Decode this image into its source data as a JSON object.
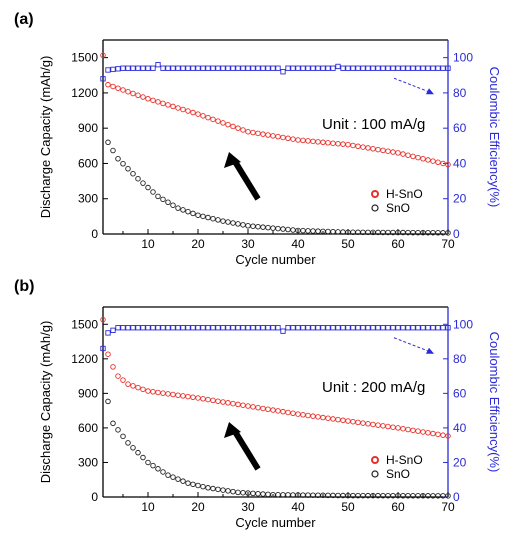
{
  "chart_data": [
    {
      "panel_label": "(a)",
      "type": "scatter",
      "annotation": "Unit : 100 mA/g",
      "xlabel": "Cycle number",
      "ylabel": "Discharge Capacity  (mAh/g)",
      "ylabel_right": "Coulombic Efficiency(%)",
      "xlim": [
        1,
        70
      ],
      "ylim": [
        0,
        1650
      ],
      "ylim_right": [
        0,
        110
      ],
      "x_ticks": [
        10,
        20,
        30,
        40,
        50,
        60,
        70
      ],
      "y_ticks": [
        0,
        300,
        600,
        900,
        1200,
        1500
      ],
      "y_ticks_right": [
        0,
        20,
        40,
        60,
        80,
        100
      ],
      "legend": [
        "H-SnO",
        "SnO"
      ],
      "colors": {
        "H-SnO": "#e8302a",
        "SnO": "#222222",
        "Coulombic Efficiency": "#2b2bd8"
      },
      "series": [
        {
          "name": "H-SnO",
          "axis": "left",
          "x_start": 1,
          "x_end": 70,
          "curve": "first:1520;1:1285;10:1150;20:1020;30:870;40:800;50:760;60:690;70:590"
        },
        {
          "name": "SnO",
          "axis": "left",
          "x_start": 2,
          "x_end": 70,
          "curve": "2:780;4:640;8:470;12:320;16:220;20:160;25:110;30:70;40:30;50:15;70:10"
        },
        {
          "axis": "right",
          "x_start": 1,
          "x_end": 70,
          "curve": "first:88;2:93;5:94;70:94",
          "outliers": "12:96;37:92;48:95"
        }
      ]
    },
    {
      "panel_label": "(b)",
      "type": "scatter",
      "annotation": "Unit : 200 mA/g",
      "xlabel": "Cycle number",
      "ylabel": "Discharge Capacity  (mAh/g)",
      "ylabel_right": "Coulombic Efficiency(%)",
      "xlim": [
        1,
        70
      ],
      "ylim": [
        0,
        1650
      ],
      "ylim_right": [
        0,
        110
      ],
      "x_ticks": [
        10,
        20,
        30,
        40,
        50,
        60,
        70
      ],
      "y_ticks": [
        0,
        300,
        600,
        900,
        1200,
        1500
      ],
      "y_ticks_right": [
        0,
        20,
        40,
        60,
        80,
        100
      ],
      "legend": [
        "H-SnO",
        "SnO"
      ],
      "colors": {
        "H-SnO": "#e8302a",
        "SnO": "#222222",
        "Coulombic Efficiency": "#2b2bd8"
      },
      "series": [
        {
          "name": "H-SnO",
          "axis": "left",
          "x_start": 1,
          "x_end": 70,
          "curve": "first:1540;2:1240;3:1130;4:1050;6:980;10:920;20:860;30:790;40:720;50:660;60:600;70:530"
        },
        {
          "name": "SnO",
          "axis": "left",
          "x_start": 2,
          "x_end": 70,
          "curve": "2:830;3:640;6:470;10:300;14:190;18:120;22:80;28:40;35:20;50:12;70:10"
        },
        {
          "axis": "right",
          "x_start": 1,
          "x_end": 70,
          "curve": "first:86;2:95;4:98;70:98",
          "outliers": "37:96"
        }
      ]
    }
  ]
}
